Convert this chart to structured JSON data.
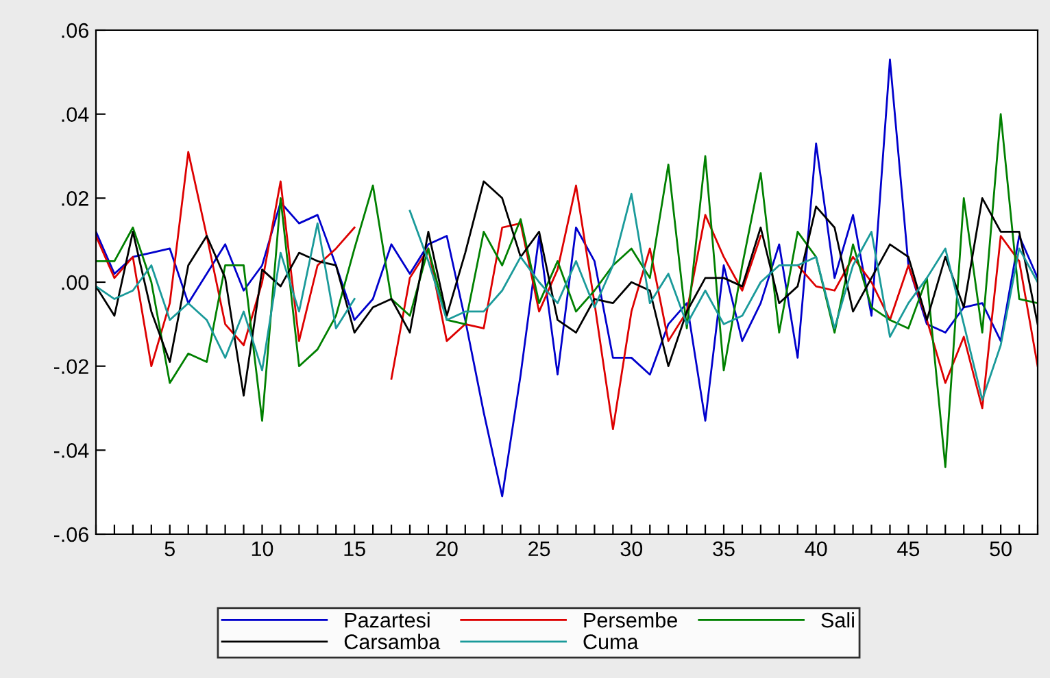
{
  "chart_data": {
    "type": "line",
    "x": [
      1,
      2,
      3,
      4,
      5,
      6,
      7,
      8,
      9,
      10,
      11,
      12,
      13,
      14,
      15,
      16,
      17,
      18,
      19,
      20,
      21,
      22,
      23,
      24,
      25,
      26,
      27,
      28,
      29,
      30,
      31,
      32,
      33,
      34,
      35,
      36,
      37,
      38,
      39,
      40,
      41,
      42,
      43,
      44,
      45,
      46,
      47,
      48,
      49,
      50,
      51,
      52
    ],
    "series": [
      {
        "name": "Pazartesi",
        "color": "#0000cc",
        "values": [
          0.012,
          0.002,
          0.006,
          0.007,
          0.008,
          -0.005,
          0.002,
          0.009,
          -0.002,
          0.004,
          0.019,
          0.014,
          0.016,
          0.004,
          -0.009,
          -0.004,
          0.009,
          0.002,
          0.009,
          0.011,
          -0.009,
          -0.031,
          -0.051,
          -0.022,
          0.011,
          -0.022,
          0.013,
          0.005,
          -0.018,
          -0.018,
          -0.022,
          -0.01,
          -0.005,
          -0.033,
          0.004,
          -0.014,
          -0.005,
          0.009,
          -0.018,
          0.033,
          0.001,
          0.016,
          -0.008,
          0.053,
          0.004,
          -0.01,
          -0.012,
          -0.006,
          -0.005,
          -0.014,
          0.011,
          0.001
        ]
      },
      {
        "name": "Persembe",
        "color": "#dd0000",
        "values": [
          0.011,
          0.001,
          0.006,
          -0.02,
          -0.005,
          0.031,
          0.011,
          -0.01,
          -0.015,
          0.0,
          0.024,
          -0.014,
          0.004,
          0.008,
          0.013,
          null,
          -0.023,
          0.001,
          0.008,
          -0.014,
          -0.01,
          -0.011,
          0.013,
          0.014,
          -0.007,
          0.003,
          0.023,
          -0.005,
          -0.035,
          -0.007,
          0.008,
          -0.014,
          -0.007,
          0.016,
          0.006,
          -0.002,
          0.011,
          null,
          0.004,
          -0.001,
          -0.002,
          0.006,
          0.0,
          -0.009,
          0.004,
          -0.009,
          -0.024,
          -0.013,
          -0.03,
          0.011,
          0.005,
          -0.02
        ]
      },
      {
        "name": "Sali",
        "color": "#008000",
        "values": [
          0.005,
          0.005,
          0.013,
          0.0,
          -0.024,
          -0.017,
          -0.019,
          0.004,
          0.004,
          -0.033,
          0.02,
          -0.02,
          -0.016,
          -0.008,
          0.008,
          0.023,
          -0.004,
          -0.008,
          0.008,
          -0.009,
          -0.01,
          0.012,
          0.004,
          0.015,
          -0.005,
          0.005,
          -0.007,
          -0.002,
          0.004,
          0.008,
          0.001,
          0.028,
          -0.011,
          0.03,
          -0.021,
          0.004,
          0.026,
          -0.012,
          0.012,
          0.006,
          -0.012,
          0.009,
          -0.006,
          -0.009,
          -0.011,
          0.001,
          -0.044,
          0.02,
          -0.012,
          0.04,
          -0.004,
          -0.005
        ]
      },
      {
        "name": "Carsamba",
        "color": "#000000",
        "values": [
          -0.001,
          -0.008,
          0.012,
          -0.007,
          -0.019,
          0.004,
          0.011,
          0.001,
          -0.027,
          0.003,
          -0.001,
          0.007,
          0.005,
          0.004,
          -0.012,
          -0.006,
          -0.004,
          -0.012,
          0.012,
          -0.008,
          0.007,
          0.024,
          0.02,
          0.006,
          0.012,
          -0.009,
          -0.012,
          -0.004,
          -0.005,
          0.0,
          -0.002,
          -0.02,
          -0.007,
          0.001,
          0.001,
          -0.001,
          0.013,
          -0.005,
          -0.001,
          0.018,
          0.013,
          -0.007,
          0.001,
          0.009,
          0.006,
          -0.009,
          0.006,
          -0.006,
          0.02,
          0.012,
          0.012,
          -0.01
        ]
      },
      {
        "name": "Cuma",
        "color": "#1a9a9a",
        "values": [
          -0.001,
          -0.004,
          -0.002,
          0.004,
          -0.009,
          -0.005,
          -0.009,
          -0.018,
          -0.007,
          -0.021,
          0.007,
          -0.007,
          0.014,
          -0.011,
          -0.004,
          null,
          null,
          0.017,
          0.005,
          -0.009,
          -0.007,
          -0.007,
          -0.002,
          0.006,
          0.0,
          -0.005,
          0.005,
          -0.006,
          0.004,
          0.021,
          -0.005,
          0.002,
          -0.01,
          -0.002,
          -0.01,
          -0.008,
          0.0,
          0.004,
          0.004,
          0.006,
          -0.011,
          0.004,
          0.012,
          -0.013,
          -0.005,
          0.001,
          0.008,
          -0.01,
          -0.028,
          -0.015,
          0.008,
          0.0
        ]
      }
    ],
    "xlim": [
      1,
      52
    ],
    "xticks": [
      {
        "value": 1,
        "label": null
      },
      {
        "value": 2,
        "label": null
      },
      {
        "value": 3,
        "label": null
      },
      {
        "value": 4,
        "label": null
      },
      5,
      {
        "value": 6,
        "label": null
      },
      {
        "value": 7,
        "label": null
      },
      {
        "value": 8,
        "label": null
      },
      {
        "value": 9,
        "label": null
      },
      10,
      {
        "value": 11,
        "label": null
      },
      {
        "value": 12,
        "label": null
      },
      {
        "value": 13,
        "label": null
      },
      {
        "value": 14,
        "label": null
      },
      15,
      {
        "value": 16,
        "label": null
      },
      {
        "value": 17,
        "label": null
      },
      {
        "value": 18,
        "label": null
      },
      {
        "value": 19,
        "label": null
      },
      20,
      {
        "value": 21,
        "label": null
      },
      {
        "value": 22,
        "label": null
      },
      {
        "value": 23,
        "label": null
      },
      {
        "value": 24,
        "label": null
      },
      25,
      {
        "value": 26,
        "label": null
      },
      {
        "value": 27,
        "label": null
      },
      {
        "value": 28,
        "label": null
      },
      {
        "value": 29,
        "label": null
      },
      30,
      {
        "value": 31,
        "label": null
      },
      {
        "value": 32,
        "label": null
      },
      {
        "value": 33,
        "label": null
      },
      {
        "value": 34,
        "label": null
      },
      35,
      {
        "value": 36,
        "label": null
      },
      {
        "value": 37,
        "label": null
      },
      {
        "value": 38,
        "label": null
      },
      {
        "value": 39,
        "label": null
      },
      40,
      {
        "value": 41,
        "label": null
      },
      {
        "value": 42,
        "label": null
      },
      {
        "value": 43,
        "label": null
      },
      {
        "value": 44,
        "label": null
      },
      45,
      {
        "value": 46,
        "label": null
      },
      {
        "value": 47,
        "label": null
      },
      {
        "value": 48,
        "label": null
      },
      {
        "value": 49,
        "label": null
      },
      50,
      {
        "value": 51,
        "label": null
      },
      {
        "value": 52,
        "label": null
      }
    ],
    "ylim": [
      -0.06,
      0.06
    ],
    "yticks": [
      {
        "value": -0.06,
        "label": "-.06"
      },
      {
        "value": -0.04,
        "label": "-.04"
      },
      {
        "value": -0.02,
        "label": "-.02"
      },
      {
        "value": 0.0,
        "label": ".00"
      },
      {
        "value": 0.02,
        "label": ".02"
      },
      {
        "value": 0.04,
        "label": ".04"
      },
      {
        "value": 0.06,
        "label": ".06"
      }
    ],
    "legend": "bottom",
    "marker": "none",
    "line_style": "solid"
  }
}
